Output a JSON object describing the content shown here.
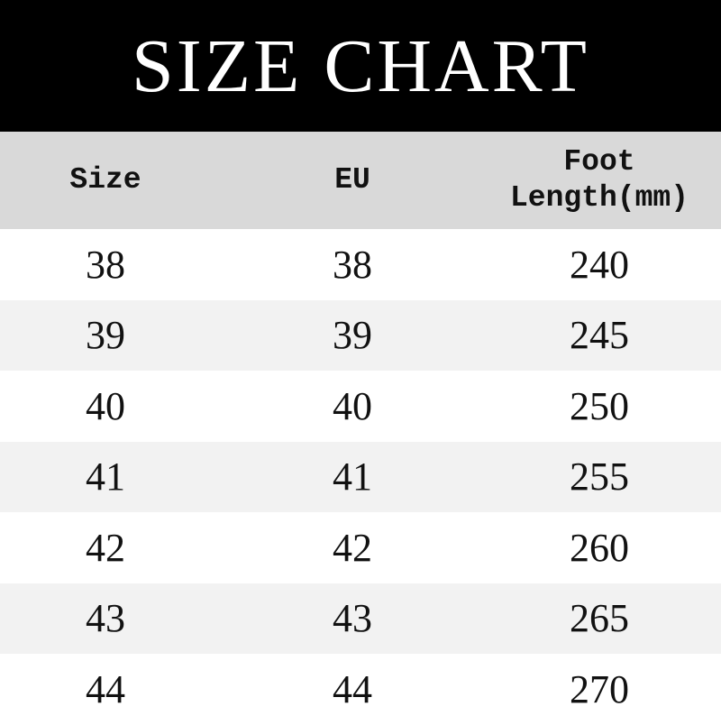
{
  "title": "SIZE CHART",
  "headers": [
    "Size",
    "EU",
    "Foot",
    "Length(mm)"
  ],
  "rows": [
    [
      "38",
      "38",
      "240"
    ],
    [
      "39",
      "39",
      "245"
    ],
    [
      "40",
      "40",
      "250"
    ],
    [
      "41",
      "41",
      "255"
    ],
    [
      "42",
      "42",
      "260"
    ],
    [
      "43",
      "43",
      "265"
    ],
    [
      "44",
      "44",
      "270"
    ]
  ],
  "colors": {
    "title_bg": "#000000",
    "header_bg": "#d9d9d9",
    "alt_row_bg": "#f2f2f2"
  }
}
